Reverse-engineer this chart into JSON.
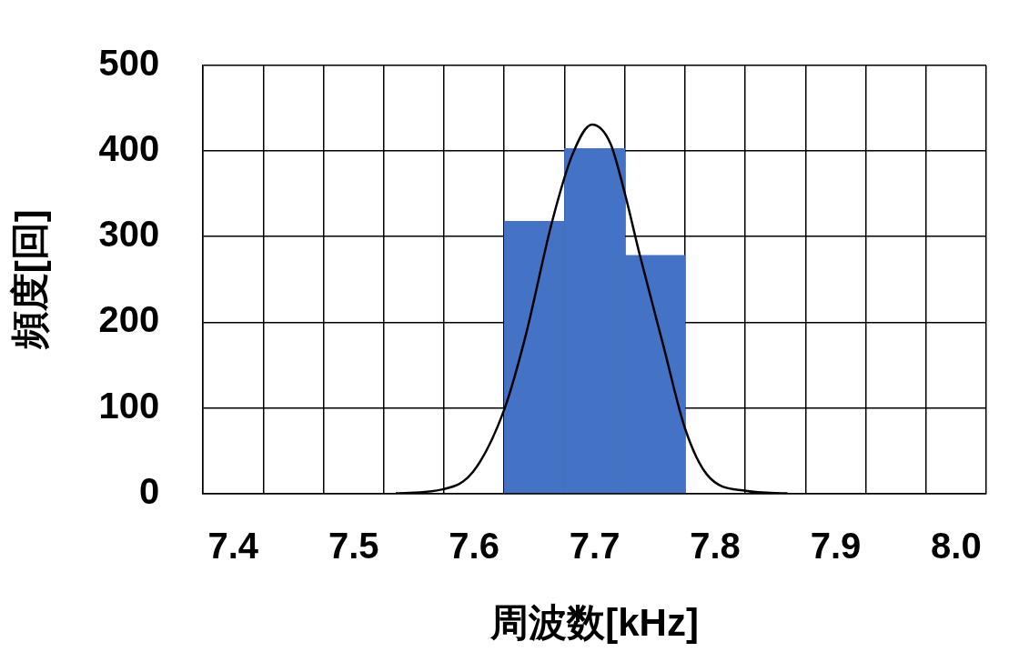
{
  "chart_data": {
    "type": "histogram",
    "xlabel": "周波数[kHz]",
    "ylabel": "頻度[回]",
    "bins": [
      7.625,
      7.675,
      7.725,
      7.775
    ],
    "values": [
      318,
      403,
      278
    ],
    "color": "#4472c4",
    "series": [
      {
        "type": "line",
        "color": "#000000",
        "x": [
          7.535,
          7.5748,
          7.599,
          7.625,
          7.6427,
          7.6646,
          7.6816,
          7.6978,
          7.7131,
          7.7248,
          7.7374,
          7.7568,
          7.775,
          7.7932,
          7.8255,
          7.86
        ],
        "values": [
          0,
          5,
          25,
          98,
          184,
          317,
          396,
          431,
          409,
          352,
          279,
          174,
          76,
          22,
          3,
          0
        ]
      }
    ],
    "xlim": [
      7.375,
      8.025
    ],
    "xticks": [
      {
        "value": 7.375,
        "label": null
      },
      {
        "value": 7.4,
        "label": "7.4"
      },
      {
        "value": 7.425,
        "label": null
      },
      {
        "value": 7.475,
        "label": null
      },
      {
        "value": 7.5,
        "label": "7.5"
      },
      {
        "value": 7.525,
        "label": null
      },
      {
        "value": 7.575,
        "label": null
      },
      {
        "value": 7.6,
        "label": "7.6"
      },
      {
        "value": 7.625,
        "label": null
      },
      {
        "value": 7.675,
        "label": null
      },
      {
        "value": 7.7,
        "label": "7.7"
      },
      {
        "value": 7.725,
        "label": null
      },
      {
        "value": 7.775,
        "label": null
      },
      {
        "value": 7.8,
        "label": "7.8"
      },
      {
        "value": 7.825,
        "label": null
      },
      {
        "value": 7.875,
        "label": null
      },
      {
        "value": 7.9,
        "label": "7.9"
      },
      {
        "value": 7.925,
        "label": null
      },
      {
        "value": 7.975,
        "label": null
      },
      {
        "value": 8.0,
        "label": "8.0"
      },
      {
        "value": 8.025,
        "label": null
      }
    ],
    "ylim": [
      0,
      500
    ],
    "yticks": [
      0,
      100,
      200,
      300,
      400,
      500
    ],
    "grid": true,
    "legend": false,
    "marker": "none"
  }
}
